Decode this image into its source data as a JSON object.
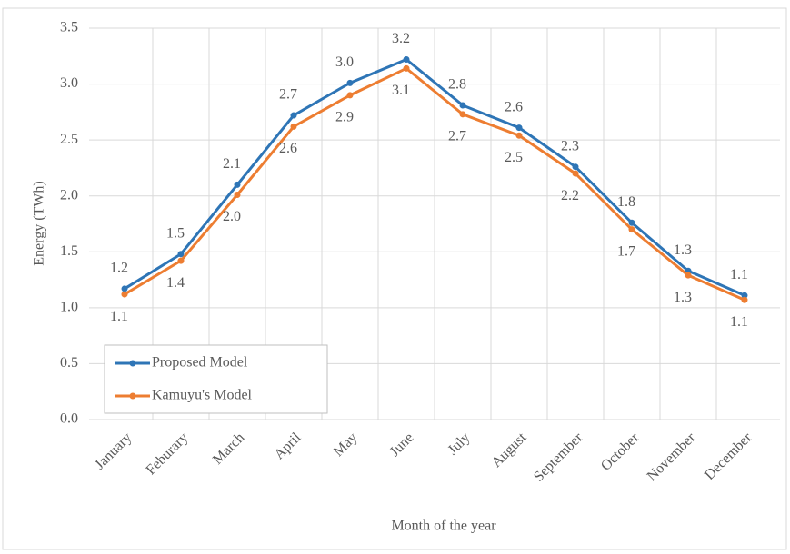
{
  "chart_data": {
    "type": "line",
    "x_label": "Month of the year",
    "y_label": "Energy (TWh)",
    "categories": [
      "January",
      "Feburary",
      "March",
      "April",
      "May",
      "June",
      "July",
      "August",
      "September",
      "October",
      "November",
      "December"
    ],
    "series": [
      {
        "name": "Proposed Model",
        "color": "#2e75b6",
        "values": [
          1.17,
          1.48,
          2.1,
          2.72,
          3.01,
          3.22,
          2.81,
          2.61,
          2.26,
          1.76,
          1.33,
          1.11
        ],
        "value_labels": [
          "1.2",
          "1.5",
          "2.1",
          "2.7",
          "3.0",
          "3.2",
          "2.8",
          "2.6",
          "2.3",
          "1.8",
          "1.3",
          "1.1"
        ]
      },
      {
        "name": "Kamuyu's Model",
        "color": "#ed7d31",
        "values": [
          1.12,
          1.42,
          2.01,
          2.62,
          2.9,
          3.14,
          2.73,
          2.54,
          2.2,
          1.7,
          1.29,
          1.07
        ],
        "value_labels": [
          "1.1",
          "1.4",
          "2.0",
          "2.6",
          "2.9",
          "3.1",
          "2.7",
          "2.5",
          "2.2",
          "1.7",
          "1.3",
          "1.1"
        ]
      }
    ],
    "ylim": [
      0,
      3.5
    ],
    "yticks": [
      {
        "value": 0,
        "label": "0.0"
      },
      0.5,
      {
        "value": 1,
        "label": "1.0"
      },
      1.5,
      {
        "value": 2,
        "label": "2.0"
      },
      2.5,
      {
        "value": 3,
        "label": "3.0"
      },
      3.5
    ],
    "grid": true,
    "legend": "lower left"
  }
}
